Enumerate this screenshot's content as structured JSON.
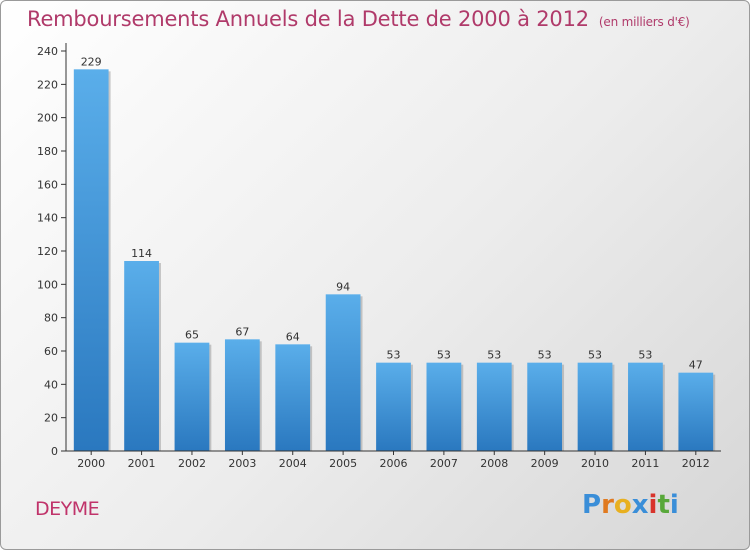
{
  "chart_data": {
    "type": "bar",
    "title": "Remboursements Annuels de la Dette de 2000 à 2012",
    "subtitle": "(en milliers d'€)",
    "categories": [
      "2000",
      "2001",
      "2002",
      "2003",
      "2004",
      "2005",
      "2006",
      "2007",
      "2008",
      "2009",
      "2010",
      "2011",
      "2012"
    ],
    "values": [
      229,
      114,
      65,
      67,
      64,
      94,
      53,
      53,
      53,
      53,
      53,
      53,
      47
    ],
    "ylim": [
      0,
      240
    ],
    "yticks": [
      0,
      20,
      40,
      60,
      80,
      100,
      120,
      140,
      160,
      180,
      200,
      220,
      240
    ],
    "grid": false,
    "xlabel": "",
    "ylabel": "",
    "bar_color": "#3d8fd6"
  },
  "commune": "DEYME",
  "logo": {
    "letters": [
      "P",
      "r",
      "o",
      "x",
      "i",
      "t",
      "i"
    ],
    "colors": [
      "#3a8ed8",
      "#e07a20",
      "#e8b020",
      "#3a8ed8",
      "#d8342c",
      "#58a83a",
      "#3a8ed8"
    ]
  }
}
